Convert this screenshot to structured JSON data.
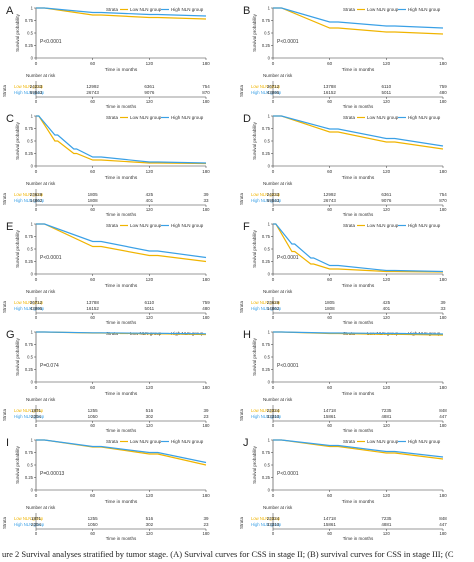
{
  "colors": {
    "low": "#f0b400",
    "high": "#3aa0e6",
    "axis": "#333333",
    "text": "#333333",
    "ci_high": "#cfe6f7"
  },
  "labels": {
    "strata": "Strata",
    "low_group": "Low NLN group",
    "high_group": "High NLN group",
    "ylabel": "Survival probability",
    "xlabel": "Time in months",
    "risk_title": "Number at risk",
    "risk_axis": "Strata",
    "risk_low": "Low NLN group",
    "risk_high": "High NLN group",
    "caption": "ure 2 Survival analyses stratified by tumor stage. (A) Survival curves for CSS in stage II; (B) survival curves for CSS in stage III; (C"
  },
  "chart_data": [
    {
      "panel": "A",
      "type": "line",
      "legend": "top-right",
      "p_value": "P<0.0001",
      "x": [
        0,
        60,
        120,
        180
      ],
      "ylim": [
        0,
        1.0
      ],
      "yticks": [
        0,
        0.25,
        0.5,
        0.75,
        1.0
      ],
      "xticks": [
        0,
        60,
        120,
        180
      ],
      "series": [
        {
          "name": "Low NLN group",
          "values": [
            1.0,
            0.86,
            0.81,
            0.78
          ]
        },
        {
          "name": "High NLN group",
          "values": [
            1.0,
            0.91,
            0.87,
            0.84
          ]
        }
      ],
      "risk": {
        "low": [
          "24233",
          "12992",
          "6361",
          "754"
        ],
        "high": [
          "59543",
          "26743",
          "9076",
          "870"
        ]
      }
    },
    {
      "panel": "B",
      "type": "line",
      "legend": "top-right",
      "p_value": "P<0.0001",
      "x": [
        0,
        60,
        120,
        180
      ],
      "ylim": [
        0,
        1.0
      ],
      "yticks": [
        0,
        0.25,
        0.5,
        0.75,
        1.0
      ],
      "xticks": [
        0,
        60,
        120,
        180
      ],
      "series": [
        {
          "name": "Low NLN group",
          "values": [
            1.0,
            0.6,
            0.52,
            0.48
          ]
        },
        {
          "name": "High NLN group",
          "values": [
            1.0,
            0.72,
            0.64,
            0.6
          ]
        }
      ],
      "risk": {
        "low": [
          "36712",
          "13788",
          "6110",
          "759"
        ],
        "high": [
          "43095",
          "16152",
          "5011",
          "480"
        ]
      }
    },
    {
      "panel": "C",
      "type": "line",
      "legend": "top-right",
      "p_value": "",
      "x": [
        0,
        20,
        40,
        60,
        120,
        180
      ],
      "ylim": [
        0,
        1.0
      ],
      "yticks": [
        0,
        0.25,
        0.5,
        0.75,
        1.0
      ],
      "xticks": [
        0,
        60,
        120,
        180
      ],
      "series": [
        {
          "name": "Low NLN group",
          "values": [
            1.0,
            0.5,
            0.25,
            0.12,
            0.06,
            0.05
          ]
        },
        {
          "name": "High NLN group",
          "values": [
            1.0,
            0.62,
            0.34,
            0.18,
            0.08,
            0.06
          ]
        }
      ],
      "risk": {
        "low": [
          "23629",
          "1805",
          "425",
          "39"
        ],
        "high": [
          "14862",
          "1808",
          "401",
          "33"
        ]
      }
    },
    {
      "panel": "D",
      "type": "line",
      "legend": "top-right",
      "p_value": "",
      "x": [
        0,
        60,
        120,
        180
      ],
      "ylim": [
        0,
        1.0
      ],
      "yticks": [
        0,
        0.25,
        0.5,
        0.75,
        1.0
      ],
      "xticks": [
        0,
        60,
        120,
        180
      ],
      "series": [
        {
          "name": "Low NLN group",
          "values": [
            1.0,
            0.68,
            0.48,
            0.34
          ]
        },
        {
          "name": "High NLN group",
          "values": [
            1.0,
            0.74,
            0.55,
            0.4
          ]
        }
      ],
      "risk": {
        "low": [
          "24233",
          "12992",
          "6361",
          "754"
        ],
        "high": [
          "59543",
          "26743",
          "9076",
          "870"
        ]
      }
    },
    {
      "panel": "E",
      "type": "line",
      "legend": "top-right",
      "p_value": "P<0.0001",
      "x": [
        0,
        60,
        120,
        180
      ],
      "ylim": [
        0,
        1.0
      ],
      "yticks": [
        0,
        0.25,
        0.5,
        0.75,
        1.0
      ],
      "xticks": [
        0,
        60,
        120,
        180
      ],
      "series": [
        {
          "name": "Low NLN group",
          "values": [
            1.0,
            0.55,
            0.37,
            0.25
          ]
        },
        {
          "name": "High NLN group",
          "values": [
            1.0,
            0.65,
            0.46,
            0.33
          ]
        }
      ],
      "risk": {
        "low": [
          "36712",
          "13788",
          "6110",
          "759"
        ],
        "high": [
          "43095",
          "16152",
          "5011",
          "480"
        ]
      }
    },
    {
      "panel": "F",
      "type": "line",
      "legend": "top-right",
      "p_value": "P<0.0001",
      "x": [
        0,
        20,
        40,
        60,
        120,
        180
      ],
      "ylim": [
        0,
        1.0
      ],
      "yticks": [
        0,
        0.25,
        0.5,
        0.75,
        1.0
      ],
      "xticks": [
        0,
        60,
        120,
        180
      ],
      "series": [
        {
          "name": "Low NLN group",
          "values": [
            1.0,
            0.45,
            0.2,
            0.1,
            0.05,
            0.04
          ]
        },
        {
          "name": "High NLN group",
          "values": [
            1.0,
            0.6,
            0.32,
            0.17,
            0.07,
            0.05
          ]
        }
      ],
      "risk": {
        "low": [
          "23629",
          "1805",
          "425",
          "39"
        ],
        "high": [
          "14862",
          "1808",
          "401",
          "33"
        ]
      }
    },
    {
      "panel": "G",
      "type": "line",
      "legend": "top-right",
      "p_value": "P=0.074",
      "x": [
        0,
        60,
        120,
        180
      ],
      "ylim": [
        0,
        1.0
      ],
      "yticks": [
        0,
        0.25,
        0.5,
        0.75,
        1.0
      ],
      "xticks": [
        0,
        60,
        120,
        180
      ],
      "series": [
        {
          "name": "Low NLN group",
          "values": [
            1.0,
            0.98,
            0.965,
            0.95
          ]
        },
        {
          "name": "High NLN group",
          "values": [
            1.0,
            0.985,
            0.975,
            0.965
          ]
        }
      ],
      "risk": {
        "low": [
          "1871",
          "1255",
          "516",
          "39"
        ],
        "high": [
          "2204",
          "1050",
          "302",
          "23"
        ]
      }
    },
    {
      "panel": "H",
      "type": "line",
      "legend": "top-right",
      "p_value": "P<0.0001",
      "x": [
        0,
        60,
        120,
        180
      ],
      "ylim": [
        0,
        1.0
      ],
      "yticks": [
        0,
        0.25,
        0.5,
        0.75,
        1.0
      ],
      "xticks": [
        0,
        60,
        120,
        180
      ],
      "series": [
        {
          "name": "Low NLN group",
          "values": [
            1.0,
            0.97,
            0.955,
            0.94
          ]
        },
        {
          "name": "High NLN group",
          "values": [
            1.0,
            0.98,
            0.97,
            0.96
          ]
        }
      ],
      "risk": {
        "low": [
          "22324",
          "14718",
          "7235",
          "848"
        ],
        "high": [
          "33310",
          "15861",
          "4881",
          "447"
        ]
      }
    },
    {
      "panel": "I",
      "type": "line",
      "legend": "top-right",
      "p_value": "P=0.00013",
      "x": [
        0,
        60,
        120,
        180
      ],
      "ylim": [
        0,
        1.0
      ],
      "yticks": [
        0,
        0.25,
        0.5,
        0.75,
        1.0
      ],
      "xticks": [
        0,
        60,
        120,
        180
      ],
      "series": [
        {
          "name": "Low NLN group",
          "values": [
            1.0,
            0.86,
            0.72,
            0.5
          ]
        },
        {
          "name": "High NLN group",
          "values": [
            1.0,
            0.87,
            0.75,
            0.55
          ]
        }
      ],
      "risk": {
        "low": [
          "1871",
          "1255",
          "516",
          "39"
        ],
        "high": [
          "2204",
          "1050",
          "302",
          "23"
        ]
      }
    },
    {
      "panel": "J",
      "type": "line",
      "legend": "top-right",
      "p_value": "P<0.0001",
      "x": [
        0,
        60,
        120,
        180
      ],
      "ylim": [
        0,
        1.0
      ],
      "yticks": [
        0,
        0.25,
        0.5,
        0.75,
        1.0
      ],
      "xticks": [
        0,
        60,
        120,
        180
      ],
      "series": [
        {
          "name": "Low NLN group",
          "values": [
            1.0,
            0.87,
            0.74,
            0.62
          ]
        },
        {
          "name": "High NLN group",
          "values": [
            1.0,
            0.89,
            0.77,
            0.66
          ]
        }
      ],
      "risk": {
        "low": [
          "22324",
          "14718",
          "7235",
          "848"
        ],
        "high": [
          "33310",
          "15861",
          "4881",
          "447"
        ]
      }
    }
  ]
}
